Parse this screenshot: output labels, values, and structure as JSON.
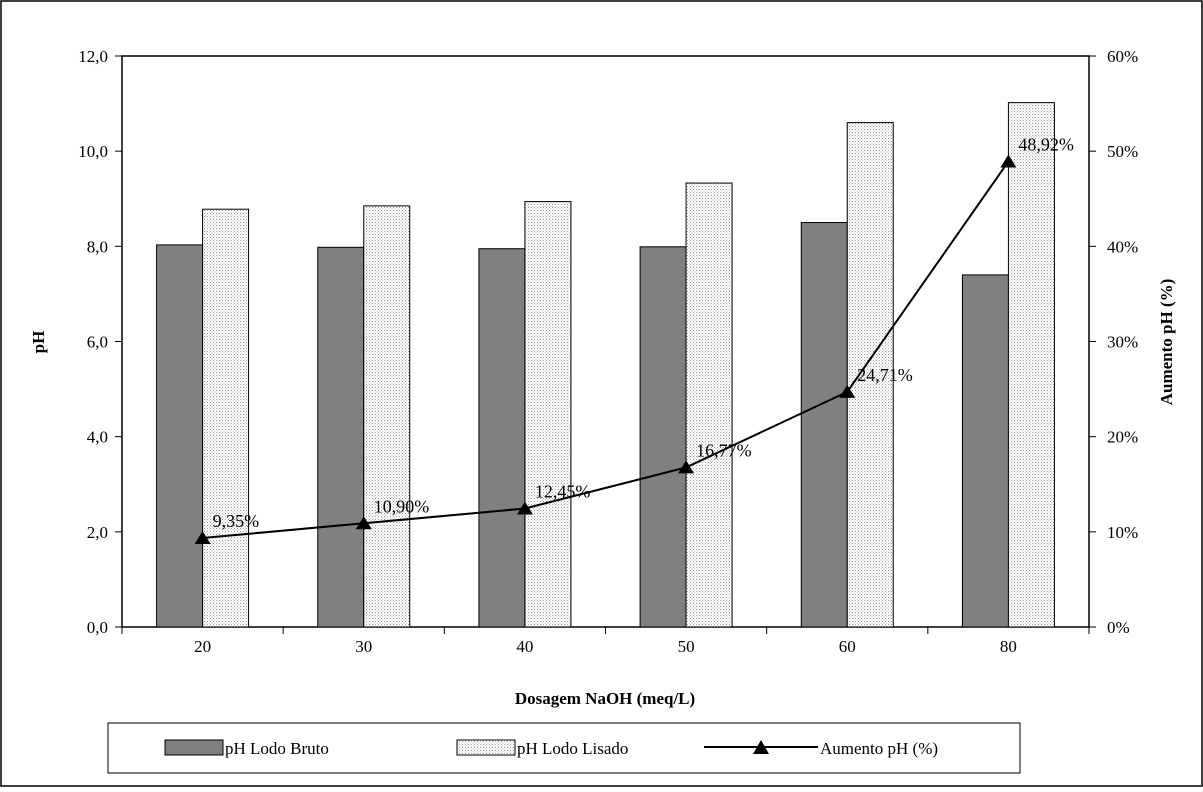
{
  "chart_data": {
    "type": "bar",
    "categories": [
      "20",
      "30",
      "40",
      "50",
      "60",
      "80"
    ],
    "xlabel": "Dosagem NaOH (meq/L)",
    "ylabel": "pH",
    "y2label": "Aumento pH (%)",
    "ylim": [
      0,
      12
    ],
    "y_ticks": [
      "0,0",
      "2,0",
      "4,0",
      "6,0",
      "8,0",
      "10,0",
      "12,0"
    ],
    "y2lim": [
      0,
      60
    ],
    "y2_ticks": [
      "0%",
      "10%",
      "20%",
      "30%",
      "40%",
      "50%",
      "60%"
    ],
    "grid": false,
    "legend_position": "bottom",
    "series": [
      {
        "name": "pH Lodo Bruto",
        "type": "bar",
        "axis": "left",
        "color": "#808080",
        "values": [
          8.03,
          7.98,
          7.95,
          7.99,
          8.5,
          7.4
        ]
      },
      {
        "name": "pH Lodo Lisado",
        "type": "bar",
        "axis": "left",
        "color": "#e0e0e0",
        "values": [
          8.78,
          8.85,
          8.94,
          9.33,
          10.6,
          11.02
        ]
      },
      {
        "name": "Aumento pH (%)",
        "type": "line",
        "axis": "right",
        "color": "#000000",
        "values": [
          9.35,
          10.9,
          12.45,
          16.77,
          24.71,
          48.92
        ],
        "data_labels": [
          "9,35%",
          "10,90%",
          "12,45%",
          "16,77%",
          "24,71%",
          "48,92%"
        ]
      }
    ]
  }
}
